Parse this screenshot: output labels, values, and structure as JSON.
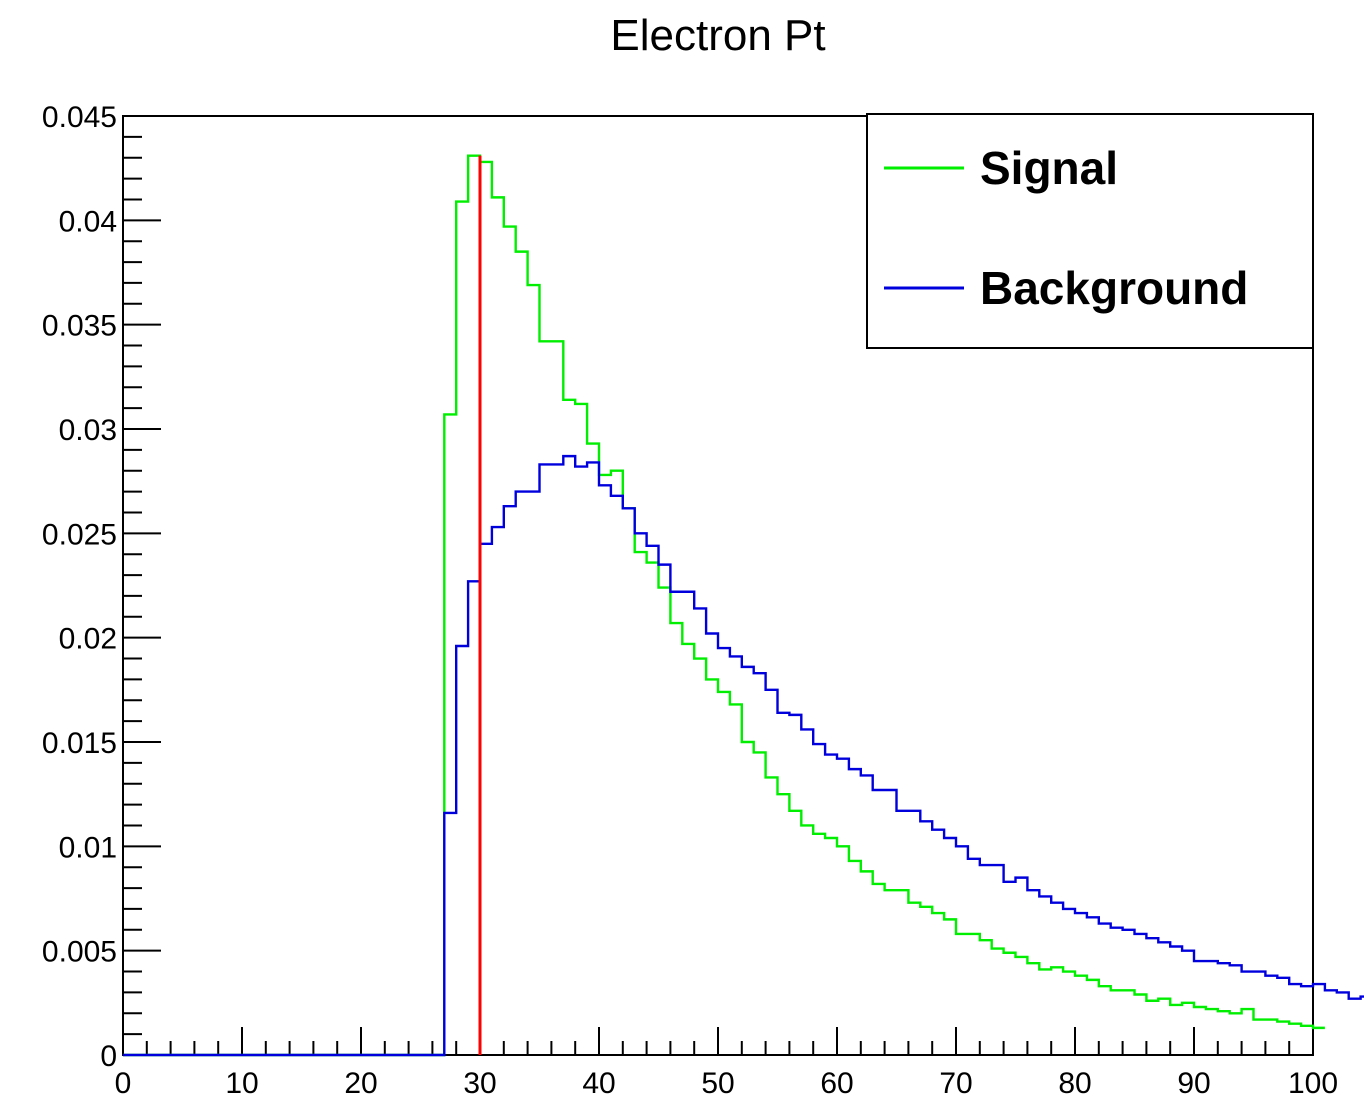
{
  "chart_data": {
    "type": "line",
    "title": "Electron Pt",
    "xlabel": "",
    "ylabel": "",
    "xlim": [
      0,
      100
    ],
    "ylim": [
      0,
      0.045
    ],
    "x_ticks": [
      "0",
      "10",
      "20",
      "30",
      "40",
      "50",
      "60",
      "70",
      "80",
      "90",
      "100"
    ],
    "y_ticks": [
      "0",
      "0.005",
      "0.01",
      "0.015",
      "0.02",
      "0.025",
      "0.03",
      "0.035",
      "0.04",
      "0.045"
    ],
    "bin_width": 1,
    "grid": false,
    "legend_position": "top-right",
    "cut_line": {
      "x": 30,
      "y_top": 0.0431,
      "color": "#ff0000"
    },
    "series": [
      {
        "name": "Signal",
        "color": "#00ee00",
        "values": [
          0,
          0,
          0,
          0,
          0,
          0,
          0,
          0,
          0,
          0,
          0,
          0,
          0,
          0,
          0,
          0,
          0,
          0,
          0,
          0,
          0,
          0,
          0,
          0,
          0,
          0,
          0,
          0.0307,
          0.0409,
          0.0431,
          0.0428,
          0.0411,
          0.0397,
          0.0385,
          0.0369,
          0.0342,
          0.0342,
          0.0314,
          0.0312,
          0.0293,
          0.0278,
          0.028,
          0.0262,
          0.0241,
          0.0236,
          0.0224,
          0.0207,
          0.0197,
          0.019,
          0.018,
          0.0174,
          0.0168,
          0.015,
          0.0145,
          0.0133,
          0.0125,
          0.0117,
          0.011,
          0.0106,
          0.0104,
          0.01,
          0.0093,
          0.0088,
          0.0082,
          0.0079,
          0.0079,
          0.0073,
          0.0071,
          0.0068,
          0.0065,
          0.0058,
          0.0058,
          0.0055,
          0.0051,
          0.0049,
          0.0047,
          0.0044,
          0.0041,
          0.0042,
          0.004,
          0.0038,
          0.0036,
          0.0033,
          0.0031,
          0.0031,
          0.0029,
          0.0026,
          0.0027,
          0.0024,
          0.0025,
          0.0023,
          0.0022,
          0.0021,
          0.002,
          0.0022,
          0.0017,
          0.0017,
          0.0016,
          0.0015,
          0.0014,
          0.0013
        ]
      },
      {
        "name": "Background",
        "color": "#0000dd",
        "values": [
          0,
          0,
          0,
          0,
          0,
          0,
          0,
          0,
          0,
          0,
          0,
          0,
          0,
          0,
          0,
          0,
          0,
          0,
          0,
          0,
          0,
          0,
          0,
          0,
          0,
          0,
          0,
          0.0116,
          0.0196,
          0.0227,
          0.0245,
          0.0253,
          0.0263,
          0.027,
          0.027,
          0.0283,
          0.0283,
          0.0287,
          0.0282,
          0.0284,
          0.0273,
          0.0268,
          0.0262,
          0.025,
          0.0244,
          0.0235,
          0.0222,
          0.0222,
          0.0214,
          0.0202,
          0.0195,
          0.0191,
          0.0186,
          0.0183,
          0.0175,
          0.0164,
          0.0163,
          0.0156,
          0.0149,
          0.0144,
          0.0142,
          0.0137,
          0.0134,
          0.0127,
          0.0127,
          0.0117,
          0.0117,
          0.0112,
          0.0108,
          0.0104,
          0.01,
          0.0094,
          0.0091,
          0.0091,
          0.0083,
          0.0085,
          0.0079,
          0.0076,
          0.0073,
          0.007,
          0.0068,
          0.0066,
          0.0063,
          0.0061,
          0.006,
          0.0058,
          0.0056,
          0.0054,
          0.0052,
          0.005,
          0.0045,
          0.0045,
          0.0044,
          0.0043,
          0.004,
          0.004,
          0.0038,
          0.0037,
          0.0034,
          0.0033,
          0.0034,
          0.0031,
          0.003,
          0.0027,
          0.0028
        ]
      }
    ]
  }
}
